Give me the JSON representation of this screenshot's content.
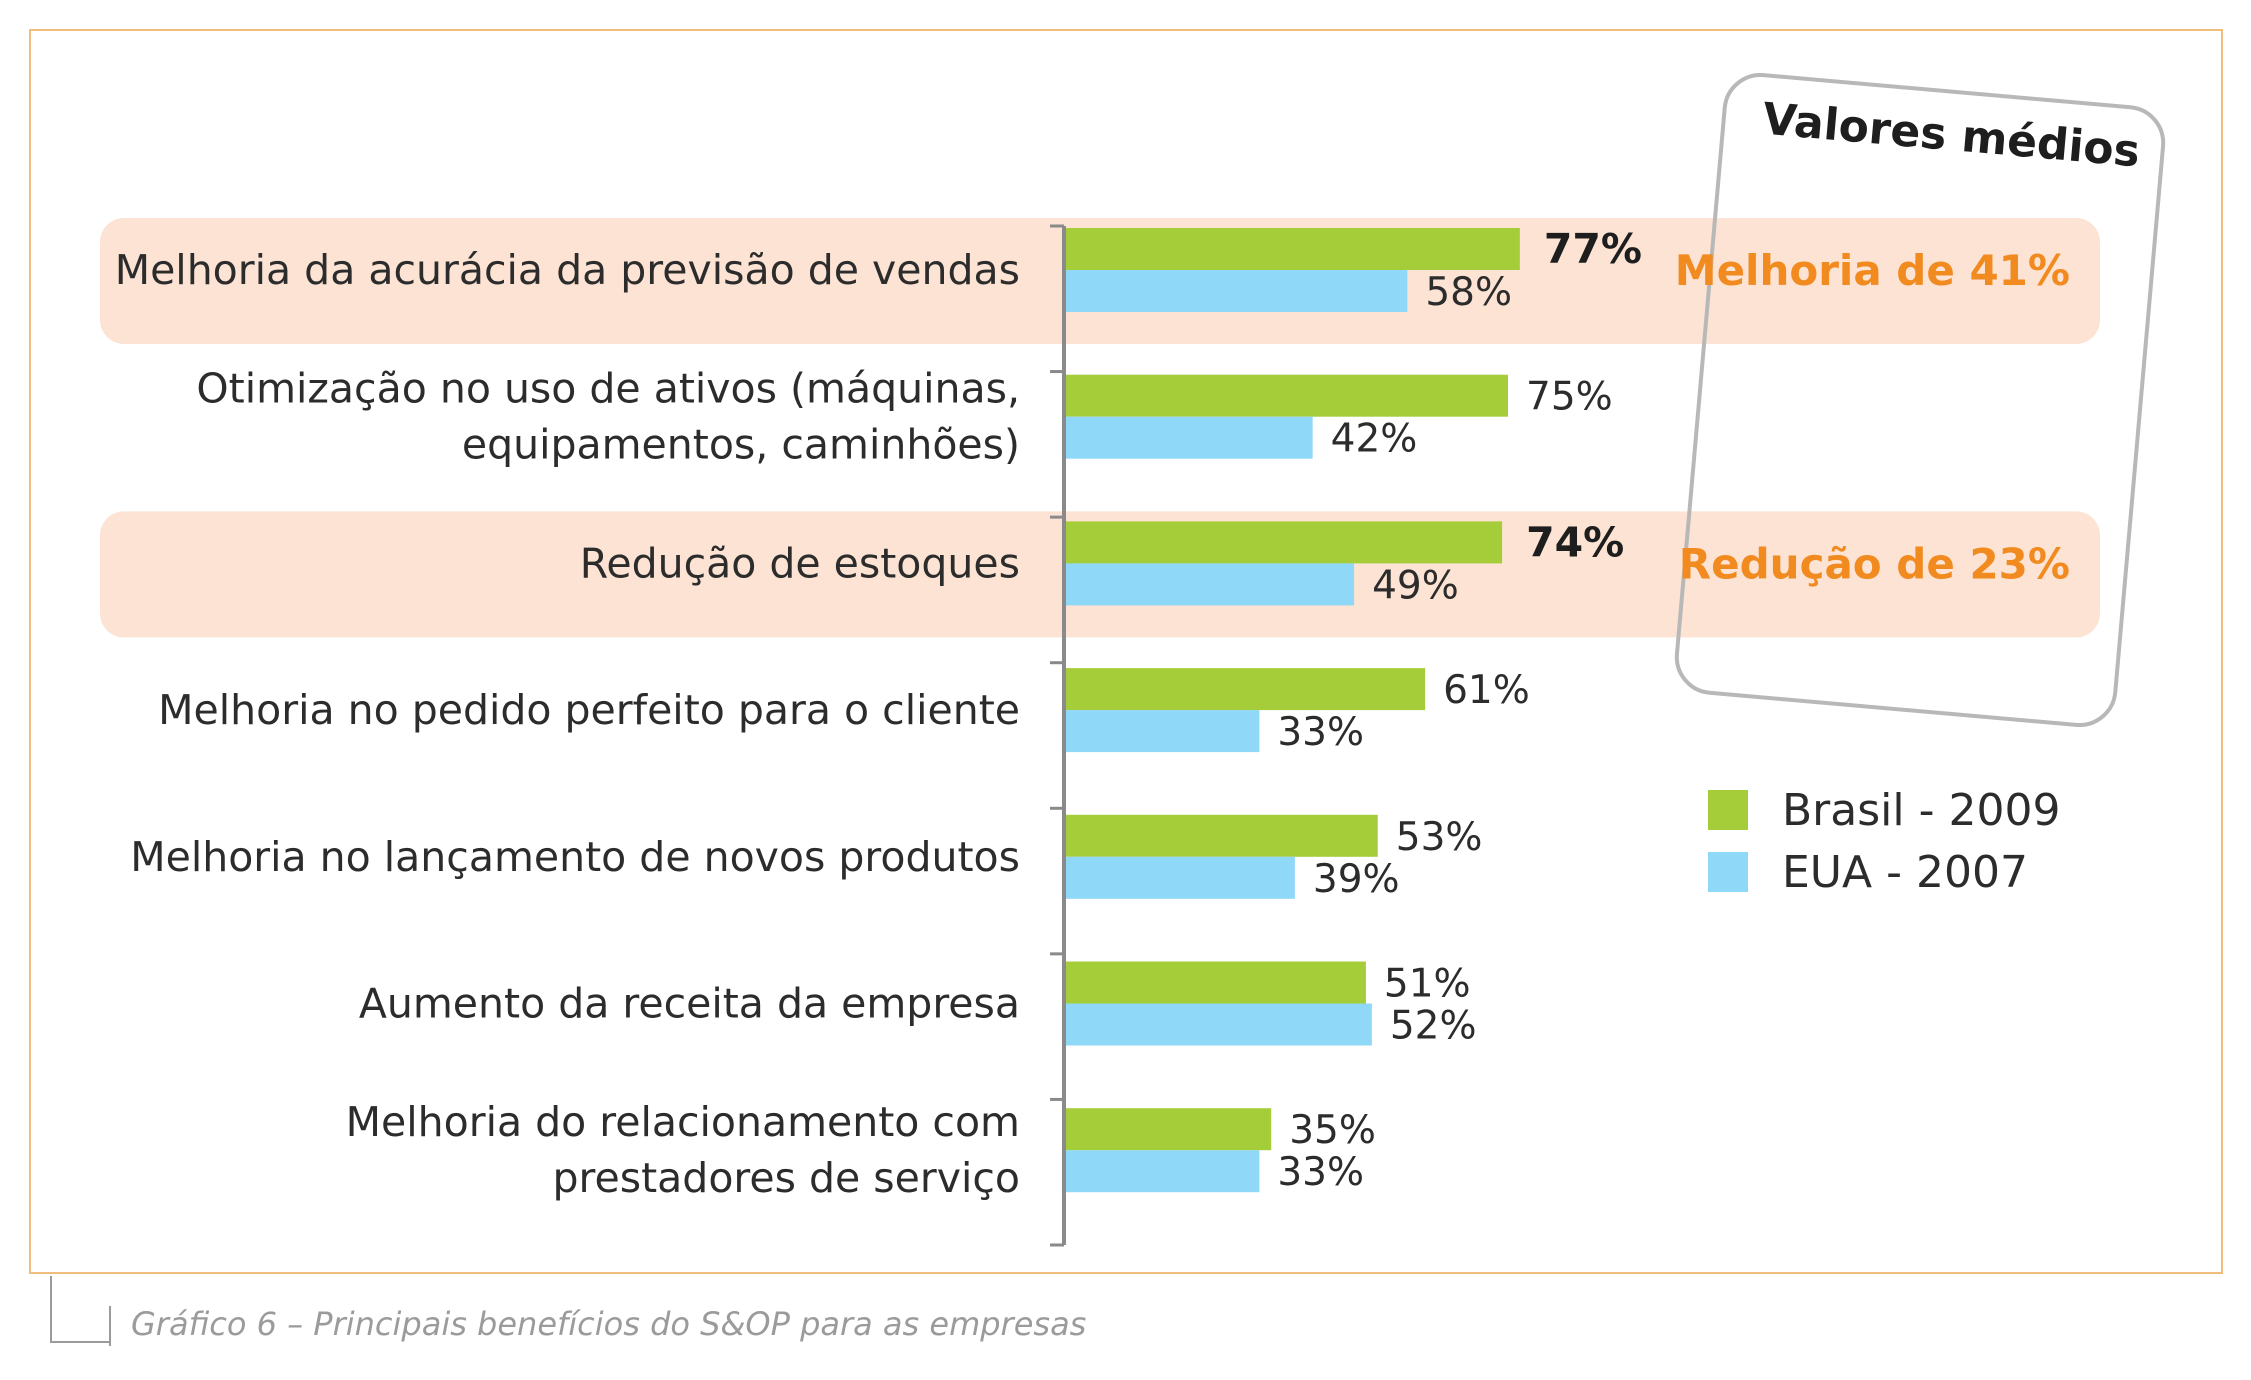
{
  "chart_data": {
    "type": "bar",
    "orientation": "horizontal",
    "categories": [
      [
        "Melhoria da acurácia da previsão de vendas"
      ],
      [
        "Otimização no uso de ativos (máquinas,",
        "equipamentos, caminhões)"
      ],
      [
        "Redução de estoques"
      ],
      [
        "Melhoria no pedido perfeito para o cliente"
      ],
      [
        "Melhoria no lançamento de novos produtos"
      ],
      [
        "Aumento da receita da empresa"
      ],
      [
        "Melhoria do relacionamento com",
        "prestadores de serviço"
      ]
    ],
    "series": [
      {
        "name": "Brasil - 2009",
        "color": "#a5cd39",
        "values": [
          77,
          75,
          74,
          61,
          53,
          51,
          35
        ],
        "labels": [
          "77%",
          "75%",
          "74%",
          "61%",
          "53%",
          "51%",
          "35%"
        ]
      },
      {
        "name": "EUA - 2007",
        "color": "#8fd8f7",
        "values": [
          58,
          42,
          49,
          33,
          39,
          52,
          33
        ],
        "labels": [
          "58%",
          "42%",
          "49%",
          "33%",
          "39%",
          "52%",
          "33%"
        ]
      }
    ],
    "bold_labels": [
      0,
      2
    ],
    "highlighted_rows": [
      0,
      2
    ],
    "xlim": [
      0,
      100
    ],
    "annotation_box_title": "Valores médios",
    "annotations": [
      {
        "row": 0,
        "text": "Melhoria de 41%"
      },
      {
        "row": 2,
        "text": "Redução de 23%"
      }
    ],
    "legend_position": "right"
  },
  "colors": {
    "highlight_band": "#fce3d3",
    "annotation_text": "#f18a1f",
    "frame_border": "#f1bd7c",
    "axis": "#8a8a8a"
  },
  "caption": "Gráfico 6 – Principais benefícios do S&OP para as empresas"
}
